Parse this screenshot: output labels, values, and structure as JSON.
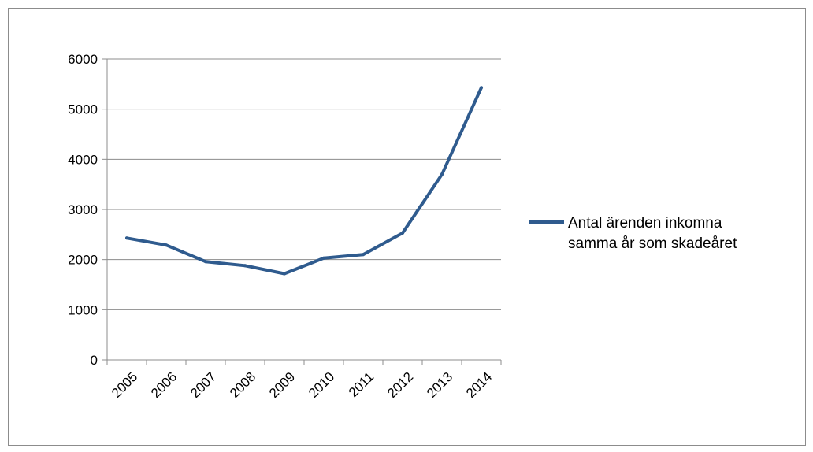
{
  "chart_data": {
    "type": "line",
    "categories": [
      "2005",
      "2006",
      "2007",
      "2008",
      "2009",
      "2010",
      "2011",
      "2012",
      "2013",
      "2014"
    ],
    "series": [
      {
        "name": "Antal ärenden inkomna samma år som skadeåret",
        "values": [
          2430,
          2290,
          1960,
          1880,
          1720,
          2030,
          2100,
          2530,
          3700,
          5430
        ]
      }
    ],
    "ylim": [
      0,
      6000
    ],
    "yticks": [
      0,
      1000,
      2000,
      3000,
      4000,
      5000,
      6000
    ],
    "grid": true,
    "legend_position": "right",
    "legend_lines": [
      "Antal ärenden inkomna",
      "samma år som skadeåret"
    ],
    "colors": {
      "series": "#2f5b8e",
      "grid": "#8c8c8c",
      "axis": "#8c8c8c"
    }
  }
}
